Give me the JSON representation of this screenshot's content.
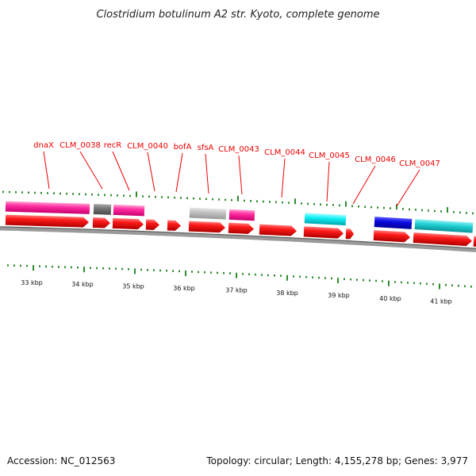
{
  "title": "Clostridium botulinum A2 str. Kyoto, complete genome",
  "footer": {
    "accession": "Accession: NC_012563",
    "topology": "Topology: circular; Length: 4,155,278 bp; Genes: 3,977"
  },
  "colors": {
    "cds": "#ff0000",
    "track_magenta": "#ff1493",
    "track_gray_dark": "#6e6e6e",
    "track_gray_light": "#bdbdbd",
    "track_cyan": "#00e5ee",
    "track_blue": "#0000dd",
    "track_teal": "#11ccd0",
    "backbone": "#8c8c8c",
    "tick": "#2e8b2e",
    "label": "#ee0000"
  },
  "genes": [
    "dnaX",
    "CLM_0038",
    "recR",
    "CLM_0040",
    "bofA",
    "sfsA",
    "CLM_0043",
    "CLM_0044",
    "CLM_0045",
    "CLM_0046",
    "CLM_0047"
  ],
  "scale_labels": [
    "33 kbp",
    "34 kbp",
    "35 kbp",
    "36 kbp",
    "37 kbp",
    "38 kbp",
    "39 kbp",
    "40 kbp",
    "41 kbp"
  ]
}
